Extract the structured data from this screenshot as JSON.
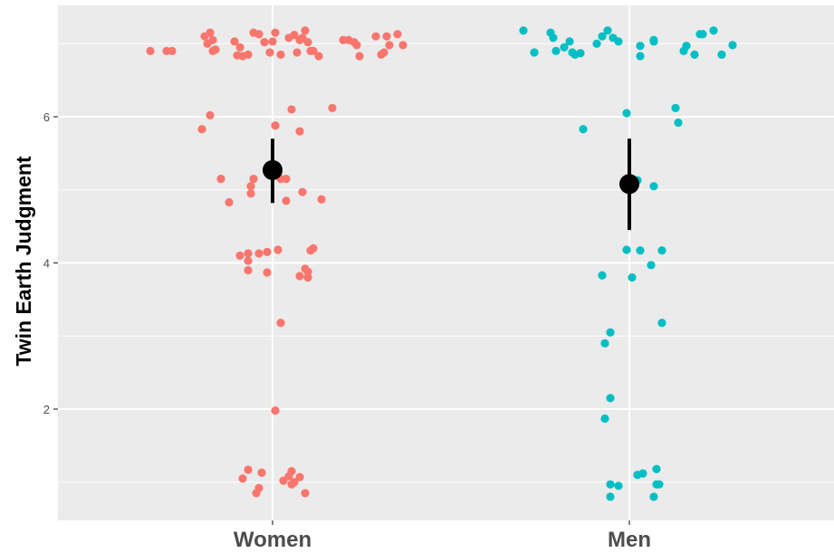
{
  "chart_data": {
    "type": "scatter",
    "title": "",
    "xlabel": "",
    "ylabel": "Twin Earth Judgment",
    "categories": [
      "Women",
      "Men"
    ],
    "y_ticks": [
      2,
      4,
      6
    ],
    "y_tick_labels": [
      "2",
      "4",
      "6"
    ],
    "ylim": [
      0.5,
      7.45
    ],
    "grid": true,
    "legend": "none",
    "colors": {
      "panel_background": "#ebebeb",
      "grid": "#ffffff",
      "summary": "#000000"
    },
    "series": [
      {
        "category": "Women",
        "color": "#f8766d",
        "points": [
          [
            -0.45,
            6.9
          ],
          [
            -0.39,
            6.9
          ],
          [
            -0.37,
            6.9
          ],
          [
            -0.25,
            7.1
          ],
          [
            -0.24,
            7.0
          ],
          [
            -0.23,
            7.15
          ],
          [
            -0.22,
            7.05
          ],
          [
            -0.22,
            6.9
          ],
          [
            -0.21,
            6.92
          ],
          [
            -0.14,
            7.03
          ],
          [
            -0.13,
            6.84
          ],
          [
            -0.12,
            6.95
          ],
          [
            -0.11,
            6.83
          ],
          [
            -0.09,
            6.85
          ],
          [
            -0.07,
            7.15
          ],
          [
            -0.05,
            7.13
          ],
          [
            -0.03,
            7.02
          ],
          [
            -0.01,
            6.88
          ],
          [
            0.0,
            7.03
          ],
          [
            0.01,
            7.15
          ],
          [
            0.03,
            6.85
          ],
          [
            0.06,
            7.08
          ],
          [
            0.08,
            7.12
          ],
          [
            0.09,
            6.88
          ],
          [
            0.1,
            7.05
          ],
          [
            0.11,
            7.08
          ],
          [
            0.12,
            7.18
          ],
          [
            0.13,
            7.02
          ],
          [
            0.14,
            6.9
          ],
          [
            0.15,
            6.9
          ],
          [
            0.17,
            6.83
          ],
          [
            0.26,
            7.05
          ],
          [
            0.28,
            7.05
          ],
          [
            0.3,
            7.02
          ],
          [
            0.31,
            6.98
          ],
          [
            0.32,
            6.83
          ],
          [
            0.38,
            7.1
          ],
          [
            0.4,
            6.85
          ],
          [
            0.41,
            6.88
          ],
          [
            0.42,
            7.1
          ],
          [
            0.43,
            6.98
          ],
          [
            0.46,
            7.13
          ],
          [
            0.48,
            6.98
          ],
          [
            -0.23,
            6.02
          ],
          [
            -0.26,
            5.83
          ],
          [
            0.01,
            5.88
          ],
          [
            0.07,
            6.1
          ],
          [
            0.1,
            5.8
          ],
          [
            0.22,
            6.12
          ],
          [
            -0.19,
            5.15
          ],
          [
            -0.07,
            5.15
          ],
          [
            -0.08,
            5.05
          ],
          [
            -0.08,
            4.95
          ],
          [
            -0.16,
            4.83
          ],
          [
            0.03,
            5.15
          ],
          [
            0.05,
            5.15
          ],
          [
            0.05,
            4.85
          ],
          [
            0.11,
            4.97
          ],
          [
            0.18,
            4.87
          ],
          [
            -0.12,
            4.1
          ],
          [
            -0.09,
            4.13
          ],
          [
            -0.09,
            4.03
          ],
          [
            -0.09,
            3.9
          ],
          [
            -0.05,
            4.13
          ],
          [
            -0.02,
            4.15
          ],
          [
            -0.02,
            3.87
          ],
          [
            0.02,
            4.18
          ],
          [
            0.13,
            3.88
          ],
          [
            0.1,
            3.82
          ],
          [
            0.12,
            3.92
          ],
          [
            0.13,
            3.8
          ],
          [
            0.14,
            4.17
          ],
          [
            0.15,
            4.2
          ],
          [
            0.03,
            3.18
          ],
          [
            0.01,
            1.98
          ],
          [
            -0.11,
            1.05
          ],
          [
            -0.09,
            1.17
          ],
          [
            -0.06,
            0.85
          ],
          [
            -0.05,
            0.92
          ],
          [
            -0.04,
            1.13
          ],
          [
            0.04,
            1.02
          ],
          [
            0.06,
            1.08
          ],
          [
            0.07,
            1.15
          ],
          [
            0.07,
            0.97
          ],
          [
            0.08,
            1.0
          ],
          [
            0.1,
            1.07
          ],
          [
            0.12,
            0.85
          ]
        ]
      },
      {
        "category": "Men",
        "color": "#00bfc4",
        "points": [
          [
            -0.39,
            7.18
          ],
          [
            -0.35,
            6.88
          ],
          [
            -0.29,
            7.15
          ],
          [
            -0.28,
            7.08
          ],
          [
            -0.27,
            6.9
          ],
          [
            -0.24,
            6.95
          ],
          [
            -0.22,
            7.03
          ],
          [
            -0.21,
            6.88
          ],
          [
            -0.2,
            6.85
          ],
          [
            -0.18,
            6.87
          ],
          [
            -0.12,
            7.0
          ],
          [
            -0.1,
            7.1
          ],
          [
            -0.08,
            7.18
          ],
          [
            -0.06,
            7.08
          ],
          [
            -0.04,
            7.03
          ],
          [
            0.04,
            6.97
          ],
          [
            0.04,
            6.83
          ],
          [
            0.09,
            7.05
          ],
          [
            0.09,
            7.03
          ],
          [
            0.2,
            6.9
          ],
          [
            0.21,
            6.97
          ],
          [
            0.24,
            6.85
          ],
          [
            0.26,
            7.13
          ],
          [
            0.27,
            7.13
          ],
          [
            0.31,
            7.18
          ],
          [
            0.34,
            6.85
          ],
          [
            0.38,
            6.98
          ],
          [
            -0.17,
            5.83
          ],
          [
            -0.01,
            6.05
          ],
          [
            0.17,
            6.12
          ],
          [
            0.18,
            5.92
          ],
          [
            0.03,
            5.13
          ],
          [
            0.09,
            5.05
          ],
          [
            -0.1,
            3.83
          ],
          [
            -0.01,
            4.18
          ],
          [
            0.01,
            3.8
          ],
          [
            0.04,
            4.17
          ],
          [
            0.08,
            3.97
          ],
          [
            0.12,
            4.17
          ],
          [
            -0.07,
            3.05
          ],
          [
            -0.09,
            2.9
          ],
          [
            0.12,
            3.18
          ],
          [
            -0.07,
            2.15
          ],
          [
            -0.09,
            1.87
          ],
          [
            -0.07,
            0.97
          ],
          [
            -0.07,
            0.8
          ],
          [
            -0.04,
            0.95
          ],
          [
            0.03,
            1.1
          ],
          [
            0.05,
            1.12
          ],
          [
            0.09,
            0.8
          ],
          [
            0.1,
            1.18
          ],
          [
            0.1,
            0.97
          ],
          [
            0.11,
            0.97
          ]
        ]
      }
    ],
    "summary": [
      {
        "category": "Women",
        "mean": 5.27,
        "lower": 4.82,
        "upper": 5.7
      },
      {
        "category": "Men",
        "mean": 5.08,
        "lower": 4.45,
        "upper": 5.7
      }
    ]
  }
}
